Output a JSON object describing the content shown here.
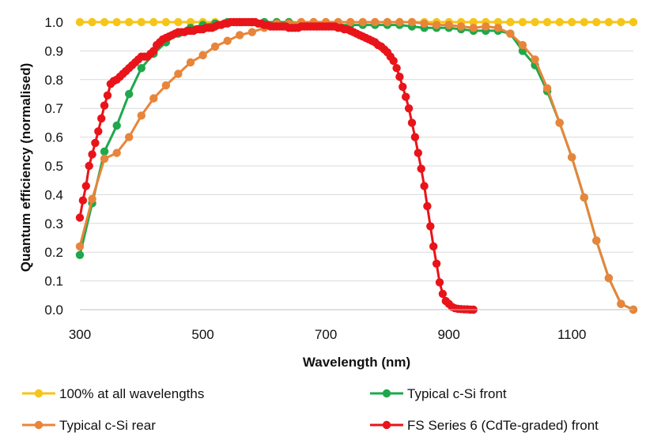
{
  "chart_data": {
    "type": "line",
    "title": "",
    "xlabel": "Wavelength (nm)",
    "ylabel": "Quantum efficiency (normalised)",
    "xlim": [
      300,
      1200
    ],
    "ylim": [
      0,
      1.0
    ],
    "x_ticks": [
      "300",
      "500",
      "700",
      "900",
      "1100"
    ],
    "x_tick_values": [
      300,
      500,
      700,
      900,
      1100
    ],
    "y_ticks": [
      "0.0",
      "0.1",
      "0.2",
      "0.3",
      "0.4",
      "0.5",
      "0.6",
      "0.7",
      "0.8",
      "0.9",
      "1.0"
    ],
    "y_tick_values": [
      0,
      0.1,
      0.2,
      0.3,
      0.4,
      0.5,
      0.6,
      0.7,
      0.8,
      0.9,
      1.0
    ],
    "grid": "horizontal",
    "legend_position": "bottom",
    "series": [
      {
        "name": "100% at all wavelengths",
        "color": "#F5C518",
        "x": [
          300,
          320,
          340,
          360,
          380,
          400,
          420,
          440,
          460,
          480,
          500,
          520,
          540,
          560,
          580,
          600,
          620,
          640,
          660,
          680,
          700,
          720,
          740,
          760,
          780,
          800,
          820,
          840,
          860,
          880,
          900,
          920,
          940,
          960,
          980,
          1000,
          1020,
          1040,
          1060,
          1080,
          1100,
          1120,
          1140,
          1160,
          1180,
          1200
        ],
        "y": [
          1,
          1,
          1,
          1,
          1,
          1,
          1,
          1,
          1,
          1,
          1,
          1,
          1,
          1,
          1,
          1,
          1,
          1,
          1,
          1,
          1,
          1,
          1,
          1,
          1,
          1,
          1,
          1,
          1,
          1,
          1,
          1,
          1,
          1,
          1,
          1,
          1,
          1,
          1,
          1,
          1,
          1,
          1,
          1,
          1,
          1
        ]
      },
      {
        "name": "Typical c-Si front",
        "color": "#1FA84B",
        "x": [
          300,
          320,
          340,
          360,
          380,
          400,
          420,
          440,
          460,
          480,
          500,
          520,
          540,
          560,
          580,
          600,
          620,
          640,
          660,
          680,
          700,
          720,
          740,
          760,
          780,
          800,
          820,
          840,
          860,
          880,
          900,
          920,
          940,
          960,
          980,
          1000,
          1020,
          1040,
          1060,
          1080,
          1100,
          1120,
          1140,
          1160,
          1180,
          1200
        ],
        "y": [
          0.19,
          0.37,
          0.55,
          0.64,
          0.75,
          0.84,
          0.89,
          0.93,
          0.96,
          0.98,
          0.99,
          0.995,
          1.0,
          1.0,
          1.0,
          1.0,
          1.0,
          1.0,
          0.995,
          0.99,
          0.99,
          0.99,
          0.99,
          0.99,
          0.99,
          0.99,
          0.99,
          0.985,
          0.98,
          0.98,
          0.98,
          0.975,
          0.97,
          0.97,
          0.97,
          0.96,
          0.9,
          0.85,
          0.76,
          0.65,
          0.53,
          0.39,
          0.24,
          0.11,
          0.02,
          0.0
        ]
      },
      {
        "name": "Typical c-Si rear",
        "color": "#E8853A",
        "x": [
          300,
          320,
          340,
          360,
          380,
          400,
          420,
          440,
          460,
          480,
          500,
          520,
          540,
          560,
          580,
          600,
          620,
          640,
          660,
          680,
          700,
          720,
          740,
          760,
          780,
          800,
          820,
          840,
          860,
          880,
          900,
          920,
          940,
          960,
          980,
          1000,
          1020,
          1040,
          1060,
          1080,
          1100,
          1120,
          1140,
          1160,
          1180,
          1200
        ],
        "y": [
          0.22,
          0.385,
          0.525,
          0.545,
          0.6,
          0.675,
          0.735,
          0.78,
          0.82,
          0.86,
          0.885,
          0.915,
          0.935,
          0.955,
          0.965,
          0.98,
          0.995,
          0.995,
          1.0,
          1.0,
          1.0,
          1.0,
          1.0,
          1.0,
          1.0,
          1.0,
          1.0,
          1.0,
          0.995,
          0.99,
          0.99,
          0.985,
          0.98,
          0.985,
          0.98,
          0.96,
          0.92,
          0.87,
          0.77,
          0.65,
          0.53,
          0.39,
          0.24,
          0.11,
          0.02,
          0.0
        ]
      },
      {
        "name": "FS Series 6 (CdTe-graded) front",
        "color": "#E8141A",
        "x": [
          300,
          305,
          310,
          315,
          320,
          325,
          330,
          335,
          340,
          345,
          350,
          355,
          360,
          365,
          370,
          375,
          380,
          385,
          390,
          395,
          400,
          405,
          410,
          415,
          420,
          425,
          430,
          435,
          440,
          445,
          450,
          455,
          460,
          465,
          470,
          475,
          480,
          485,
          490,
          495,
          500,
          505,
          510,
          515,
          520,
          525,
          530,
          535,
          540,
          545,
          550,
          555,
          560,
          565,
          570,
          575,
          580,
          585,
          590,
          595,
          600,
          605,
          610,
          615,
          620,
          625,
          630,
          635,
          640,
          645,
          650,
          655,
          660,
          665,
          670,
          675,
          680,
          685,
          690,
          695,
          700,
          705,
          710,
          715,
          720,
          725,
          730,
          735,
          740,
          745,
          750,
          755,
          760,
          765,
          770,
          775,
          780,
          785,
          790,
          795,
          800,
          805,
          810,
          815,
          820,
          825,
          830,
          835,
          840,
          845,
          850,
          855,
          860,
          865,
          870,
          875,
          880,
          885,
          890,
          895,
          900,
          905,
          910,
          915,
          920,
          925,
          930,
          935,
          940
        ],
        "y": [
          0.32,
          0.38,
          0.43,
          0.5,
          0.54,
          0.58,
          0.62,
          0.665,
          0.71,
          0.745,
          0.785,
          0.795,
          0.8,
          0.81,
          0.82,
          0.83,
          0.84,
          0.85,
          0.86,
          0.87,
          0.88,
          0.88,
          0.88,
          0.89,
          0.9,
          0.92,
          0.93,
          0.94,
          0.945,
          0.95,
          0.955,
          0.96,
          0.965,
          0.965,
          0.965,
          0.97,
          0.97,
          0.97,
          0.975,
          0.975,
          0.975,
          0.98,
          0.98,
          0.98,
          0.985,
          0.99,
          0.99,
          0.995,
          0.995,
          1.0,
          1.0,
          1.0,
          1.0,
          1.0,
          1.0,
          1.0,
          1.0,
          1.0,
          0.995,
          0.995,
          0.99,
          0.99,
          0.985,
          0.985,
          0.985,
          0.985,
          0.985,
          0.985,
          0.98,
          0.98,
          0.98,
          0.98,
          0.985,
          0.985,
          0.985,
          0.985,
          0.985,
          0.985,
          0.985,
          0.985,
          0.985,
          0.985,
          0.985,
          0.985,
          0.98,
          0.98,
          0.975,
          0.975,
          0.97,
          0.965,
          0.96,
          0.955,
          0.95,
          0.945,
          0.94,
          0.935,
          0.93,
          0.92,
          0.915,
          0.905,
          0.895,
          0.88,
          0.865,
          0.84,
          0.81,
          0.775,
          0.74,
          0.7,
          0.65,
          0.6,
          0.545,
          0.49,
          0.43,
          0.36,
          0.29,
          0.22,
          0.16,
          0.095,
          0.055,
          0.03,
          0.02,
          0.01,
          0.005,
          0.003,
          0.002,
          0.001,
          0.001,
          0.0,
          0.0
        ]
      }
    ]
  }
}
